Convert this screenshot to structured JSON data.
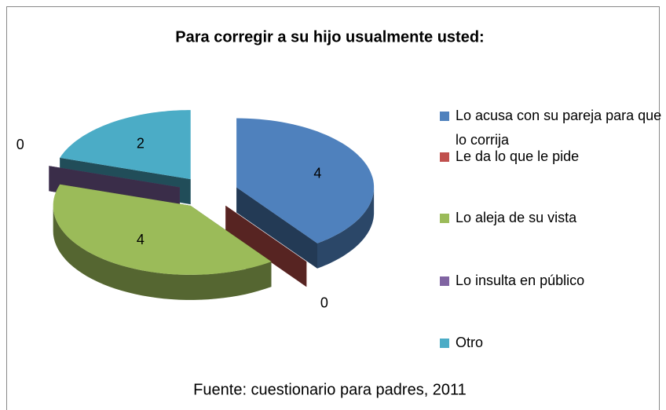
{
  "chart_data": {
    "type": "pie3d",
    "title": "Para corregir a su hijo usualmente usted:",
    "categories": [
      "Lo acusa con su pareja para que lo corrija",
      "Le da lo que le pide",
      "Lo aleja de su vista",
      "Lo insulta en público",
      "Otro"
    ],
    "values": [
      4,
      0,
      4,
      0,
      2
    ],
    "colors": [
      "#4f81bd",
      "#c0504d",
      "#9bbb59",
      "#8064a2",
      "#4bacc6"
    ],
    "legend": "right",
    "caption": "Fuente: cuestionario para padres, 2011"
  }
}
